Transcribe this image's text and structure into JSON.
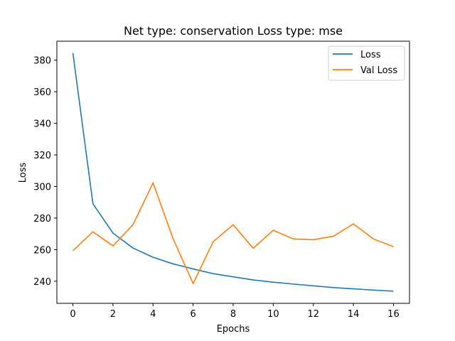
{
  "chart_data": {
    "type": "line",
    "title": "Net type: conservation Loss type: mse",
    "xlabel": "Epochs",
    "ylabel": "Loss",
    "x": [
      0,
      1,
      2,
      3,
      4,
      5,
      6,
      7,
      8,
      9,
      10,
      11,
      12,
      13,
      14,
      15,
      16
    ],
    "xlim": [
      -0.8,
      16.8
    ],
    "ylim": [
      226,
      392
    ],
    "xticks": [
      0,
      2,
      4,
      6,
      8,
      10,
      12,
      14,
      16
    ],
    "yticks": [
      240,
      260,
      280,
      300,
      320,
      340,
      360,
      380
    ],
    "grid": false,
    "legend_position": "top-right",
    "series": [
      {
        "name": "Loss",
        "color": "#1f77b4",
        "values": [
          384.5,
          289.0,
          270.5,
          261.0,
          255.2,
          251.0,
          247.8,
          244.8,
          242.8,
          240.8,
          239.4,
          238.2,
          237.1,
          236.0,
          235.2,
          234.4,
          233.7
        ]
      },
      {
        "name": "Val Loss",
        "color": "#ff7f0e",
        "values": [
          259.3,
          271.3,
          262.4,
          275.8,
          302.3,
          267.0,
          238.5,
          265.0,
          275.8,
          260.9,
          272.3,
          266.8,
          266.3,
          268.5,
          276.3,
          266.8,
          261.9
        ]
      }
    ]
  }
}
